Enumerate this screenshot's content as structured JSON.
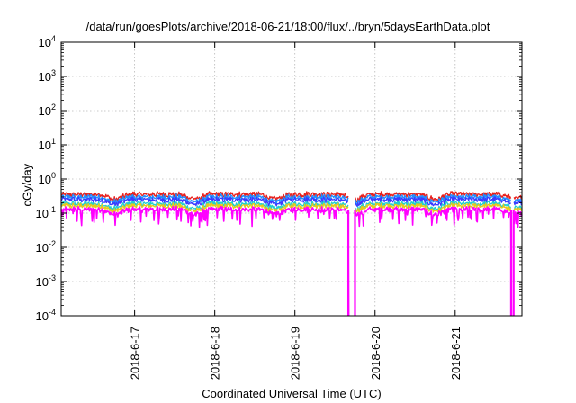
{
  "chart_data": {
    "type": "line",
    "title": "/data/run/goesPlots/archive/2018-06-21/18:00/flux/../bryn/5daysEarthData.plot",
    "xlabel": "Coordinated Universal Time (UTC)",
    "ylabel": "cGy/day",
    "yscale": "log",
    "ylim": [
      0.0001,
      10000
    ],
    "y_ticks": [
      {
        "value": 0.0001,
        "base": "10",
        "exp": "-4"
      },
      {
        "value": 0.001,
        "base": "10",
        "exp": "-3"
      },
      {
        "value": 0.01,
        "base": "10",
        "exp": "-2"
      },
      {
        "value": 0.1,
        "base": "10",
        "exp": "-1"
      },
      {
        "value": 1,
        "base": "10",
        "exp": "0"
      },
      {
        "value": 10,
        "base": "10",
        "exp": "1"
      },
      {
        "value": 100,
        "base": "10",
        "exp": "2"
      },
      {
        "value": 1000,
        "base": "10",
        "exp": "3"
      },
      {
        "value": 10000,
        "base": "10",
        "exp": "4"
      }
    ],
    "x_ticks": [
      "2018-6-17",
      "2018-6-18",
      "2018-6-19",
      "2018-6-20",
      "2018-6-21"
    ],
    "xlim": [
      "2018-06-16 02:00",
      "2018-06-21 20:00"
    ],
    "grid": true,
    "data_gaps": [
      {
        "start": "2018-06-19 16:00",
        "end": "2018-06-19 18:00"
      },
      {
        "start": "2018-06-21 16:45",
        "end": "2018-06-21 17:30"
      }
    ],
    "series": [
      {
        "color": "#e8201c",
        "base_level": 0.36
      },
      {
        "color": "#1f8fff",
        "base_level": 0.3
      },
      {
        "color": "#3a3aff",
        "base_level": 0.25
      },
      {
        "color": "#1fcfcf",
        "base_level": 0.19
      },
      {
        "color": "#e8c81c",
        "base_level": 0.165
      },
      {
        "color": "#ff00ff",
        "base_level": 0.13
      }
    ]
  }
}
